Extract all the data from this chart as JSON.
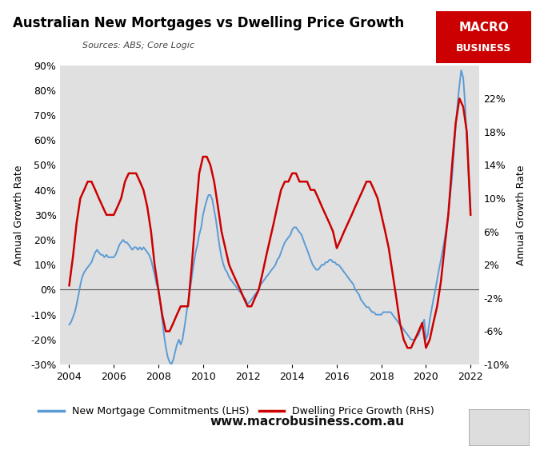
{
  "title": "Australian New Mortgages vs Dwelling Price Growth",
  "source": "  Sources: ABS; Core Logic",
  "website": "www.macrobusiness.com.au",
  "ylabel_left": "Annual Growth Rate",
  "ylabel_right": "Annual Growth Rate",
  "legend_lhs": "New Mortgage Commitments (LHS)",
  "legend_rhs": "Dwelling Price Growth (RHS)",
  "color_lhs": "#5b9bd5",
  "color_rhs": "#cc0000",
  "bg_color": "#e0e0e0",
  "ylim_left": [
    -30,
    90
  ],
  "ylim_right": [
    -10,
    26
  ],
  "yticks_left": [
    -30,
    -20,
    -10,
    0,
    10,
    20,
    30,
    40,
    50,
    60,
    70,
    80,
    90
  ],
  "yticks_right": [
    -10,
    -6,
    -2,
    2,
    6,
    10,
    14,
    18,
    22
  ],
  "xlim": [
    2003.6,
    2022.4
  ],
  "xticks": [
    2004,
    2006,
    2008,
    2010,
    2012,
    2014,
    2016,
    2018,
    2020,
    2022
  ],
  "lhs_dates": [
    2004.0,
    2004.08,
    2004.17,
    2004.25,
    2004.33,
    2004.42,
    2004.5,
    2004.58,
    2004.67,
    2004.75,
    2004.83,
    2004.92,
    2005.0,
    2005.08,
    2005.17,
    2005.25,
    2005.33,
    2005.42,
    2005.5,
    2005.58,
    2005.67,
    2005.75,
    2005.83,
    2005.92,
    2006.0,
    2006.08,
    2006.17,
    2006.25,
    2006.33,
    2006.42,
    2006.5,
    2006.58,
    2006.67,
    2006.75,
    2006.83,
    2006.92,
    2007.0,
    2007.08,
    2007.17,
    2007.25,
    2007.33,
    2007.42,
    2007.5,
    2007.58,
    2007.67,
    2007.75,
    2007.83,
    2007.92,
    2008.0,
    2008.08,
    2008.17,
    2008.25,
    2008.33,
    2008.42,
    2008.5,
    2008.58,
    2008.67,
    2008.75,
    2008.83,
    2008.92,
    2009.0,
    2009.08,
    2009.17,
    2009.25,
    2009.33,
    2009.42,
    2009.5,
    2009.58,
    2009.67,
    2009.75,
    2009.83,
    2009.92,
    2010.0,
    2010.08,
    2010.17,
    2010.25,
    2010.33,
    2010.42,
    2010.5,
    2010.58,
    2010.67,
    2010.75,
    2010.83,
    2010.92,
    2011.0,
    2011.08,
    2011.17,
    2011.25,
    2011.33,
    2011.42,
    2011.5,
    2011.58,
    2011.67,
    2011.75,
    2011.83,
    2011.92,
    2012.0,
    2012.08,
    2012.17,
    2012.25,
    2012.33,
    2012.42,
    2012.5,
    2012.58,
    2012.67,
    2012.75,
    2012.83,
    2012.92,
    2013.0,
    2013.08,
    2013.17,
    2013.25,
    2013.33,
    2013.42,
    2013.5,
    2013.58,
    2013.67,
    2013.75,
    2013.83,
    2013.92,
    2014.0,
    2014.08,
    2014.17,
    2014.25,
    2014.33,
    2014.42,
    2014.5,
    2014.58,
    2014.67,
    2014.75,
    2014.83,
    2014.92,
    2015.0,
    2015.08,
    2015.17,
    2015.25,
    2015.33,
    2015.42,
    2015.5,
    2015.58,
    2015.67,
    2015.75,
    2015.83,
    2015.92,
    2016.0,
    2016.08,
    2016.17,
    2016.25,
    2016.33,
    2016.42,
    2016.5,
    2016.58,
    2016.67,
    2016.75,
    2016.83,
    2016.92,
    2017.0,
    2017.08,
    2017.17,
    2017.25,
    2017.33,
    2017.42,
    2017.5,
    2017.58,
    2017.67,
    2017.75,
    2017.83,
    2017.92,
    2018.0,
    2018.08,
    2018.17,
    2018.25,
    2018.33,
    2018.42,
    2018.5,
    2018.58,
    2018.67,
    2018.75,
    2018.83,
    2018.92,
    2019.0,
    2019.08,
    2019.17,
    2019.25,
    2019.33,
    2019.42,
    2019.5,
    2019.58,
    2019.67,
    2019.75,
    2019.83,
    2019.92,
    2020.0,
    2020.08,
    2020.17,
    2020.25,
    2020.33,
    2020.42,
    2020.5,
    2020.58,
    2020.67,
    2020.75,
    2020.83,
    2020.92,
    2021.0,
    2021.08,
    2021.17,
    2021.25,
    2021.33,
    2021.42,
    2021.5,
    2021.58,
    2021.67,
    2021.75,
    2021.83,
    2021.92,
    2022.0
  ],
  "lhs_values": [
    -14,
    -13,
    -11,
    -9,
    -6,
    -2,
    2,
    5,
    7,
    8,
    9,
    10,
    11,
    13,
    15,
    16,
    15,
    14,
    14,
    13,
    14,
    13,
    13,
    13,
    13,
    14,
    16,
    18,
    19,
    20,
    19,
    19,
    18,
    17,
    16,
    17,
    17,
    16,
    17,
    16,
    17,
    16,
    15,
    14,
    12,
    9,
    6,
    2,
    0,
    -5,
    -12,
    -18,
    -23,
    -27,
    -29,
    -30,
    -28,
    -25,
    -22,
    -20,
    -22,
    -20,
    -15,
    -10,
    -5,
    0,
    5,
    10,
    15,
    18,
    22,
    25,
    30,
    33,
    36,
    38,
    38,
    36,
    32,
    28,
    22,
    17,
    13,
    10,
    8,
    7,
    5,
    4,
    3,
    2,
    1,
    0,
    -1,
    -2,
    -3,
    -4,
    -6,
    -5,
    -4,
    -3,
    -2,
    -1,
    0,
    2,
    3,
    4,
    5,
    6,
    7,
    8,
    9,
    10,
    12,
    13,
    15,
    17,
    19,
    20,
    21,
    22,
    24,
    25,
    25,
    24,
    23,
    22,
    20,
    18,
    16,
    14,
    12,
    10,
    9,
    8,
    8,
    9,
    10,
    10,
    11,
    11,
    12,
    12,
    11,
    11,
    10,
    10,
    9,
    8,
    7,
    6,
    5,
    4,
    3,
    2,
    0,
    -1,
    -2,
    -4,
    -5,
    -6,
    -7,
    -7,
    -8,
    -9,
    -9,
    -10,
    -10,
    -10,
    -10,
    -9,
    -9,
    -9,
    -9,
    -9,
    -10,
    -11,
    -12,
    -13,
    -14,
    -15,
    -16,
    -17,
    -18,
    -19,
    -20,
    -20,
    -20,
    -19,
    -18,
    -16,
    -14,
    -12,
    -20,
    -18,
    -12,
    -8,
    -4,
    0,
    4,
    8,
    12,
    16,
    20,
    25,
    30,
    37,
    45,
    55,
    65,
    75,
    82,
    88,
    85,
    75,
    60,
    45,
    32
  ],
  "rhs_dates": [
    2004.0,
    2004.17,
    2004.33,
    2004.5,
    2004.67,
    2004.83,
    2005.0,
    2005.17,
    2005.33,
    2005.5,
    2005.67,
    2005.83,
    2006.0,
    2006.17,
    2006.33,
    2006.5,
    2006.67,
    2006.83,
    2007.0,
    2007.17,
    2007.33,
    2007.5,
    2007.67,
    2007.83,
    2008.0,
    2008.17,
    2008.33,
    2008.5,
    2008.67,
    2008.83,
    2009.0,
    2009.17,
    2009.33,
    2009.5,
    2009.67,
    2009.83,
    2010.0,
    2010.17,
    2010.33,
    2010.5,
    2010.67,
    2010.83,
    2011.0,
    2011.17,
    2011.33,
    2011.5,
    2011.67,
    2011.83,
    2012.0,
    2012.17,
    2012.33,
    2012.5,
    2012.67,
    2012.83,
    2013.0,
    2013.17,
    2013.33,
    2013.5,
    2013.67,
    2013.83,
    2014.0,
    2014.17,
    2014.33,
    2014.5,
    2014.67,
    2014.83,
    2015.0,
    2015.17,
    2015.33,
    2015.5,
    2015.67,
    2015.83,
    2016.0,
    2016.17,
    2016.33,
    2016.5,
    2016.67,
    2016.83,
    2017.0,
    2017.17,
    2017.33,
    2017.5,
    2017.67,
    2017.83,
    2018.0,
    2018.17,
    2018.33,
    2018.5,
    2018.67,
    2018.83,
    2019.0,
    2019.17,
    2019.33,
    2019.5,
    2019.67,
    2019.83,
    2020.0,
    2020.17,
    2020.33,
    2020.5,
    2020.67,
    2020.83,
    2021.0,
    2021.17,
    2021.33,
    2021.5,
    2021.67,
    2021.83,
    2022.0
  ],
  "rhs_values": [
    -0.5,
    3,
    7,
    10,
    11,
    12,
    12,
    11,
    10,
    9,
    8,
    8,
    8,
    9,
    10,
    12,
    13,
    13,
    13,
    12,
    11,
    9,
    6,
    2,
    -1,
    -4,
    -6,
    -6,
    -5,
    -4,
    -3,
    -3,
    -3,
    2,
    8,
    13,
    15,
    15,
    14,
    12,
    9,
    6,
    4,
    2,
    1,
    0,
    -1,
    -2,
    -3,
    -3,
    -2,
    -1,
    1,
    3,
    5,
    7,
    9,
    11,
    12,
    12,
    13,
    13,
    12,
    12,
    12,
    11,
    11,
    10,
    9,
    8,
    7,
    6,
    4,
    5,
    6,
    7,
    8,
    9,
    10,
    11,
    12,
    12,
    11,
    10,
    8,
    6,
    4,
    1,
    -2,
    -5,
    -7,
    -8,
    -8,
    -7,
    -6,
    -5,
    -8,
    -7,
    -5,
    -3,
    0,
    4,
    8,
    14,
    19,
    22,
    21,
    18,
    8
  ],
  "macro_box_color": "#cc0000",
  "macro_text_color": "#ffffff",
  "fig_width": 6.85,
  "fig_height": 5.63,
  "dpi": 100
}
